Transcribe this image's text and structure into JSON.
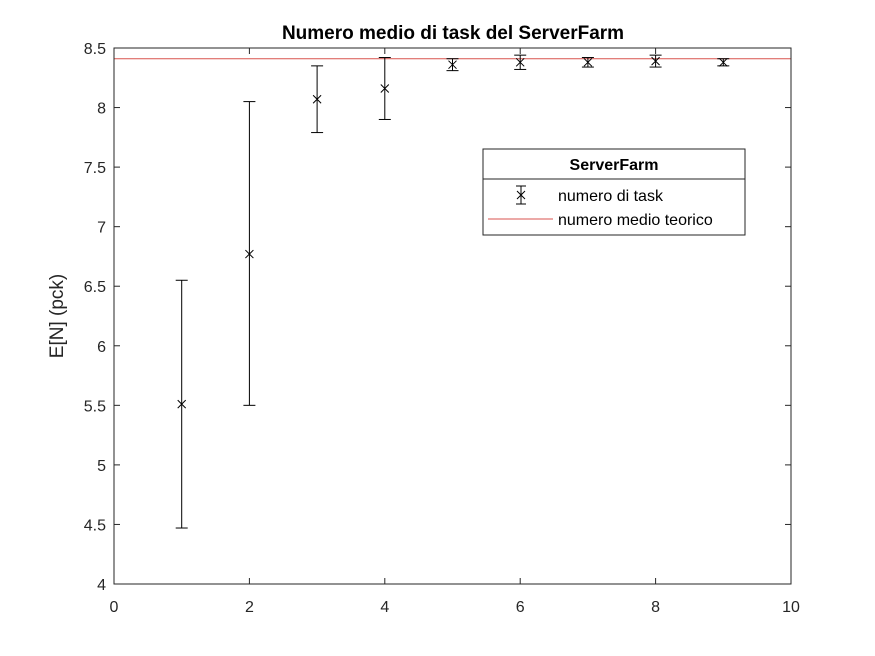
{
  "chart_data": {
    "type": "scatter",
    "title": "Numero medio di task del ServerFarm",
    "xlabel": "",
    "ylabel": "E[N] (pck)",
    "xlim": [
      0,
      10
    ],
    "ylim": [
      4,
      8.5
    ],
    "xticks": [
      "0",
      "2",
      "4",
      "6",
      "8",
      "10"
    ],
    "yticks": [
      "4",
      "4.5",
      "5",
      "5.5",
      "6",
      "6.5",
      "7",
      "7.5",
      "8",
      "8.5"
    ],
    "grid": false,
    "legend": {
      "title": "ServerFarm",
      "placement": "upper-right-inside",
      "entries": [
        "numero di task",
        "numero medio teorico"
      ]
    },
    "series": [
      {
        "name": "numero di task",
        "kind": "errorbar",
        "marker": "x",
        "color": "#000000",
        "x": [
          1,
          2,
          3,
          4,
          5,
          6,
          7,
          8,
          9
        ],
        "y": [
          5.51,
          6.77,
          8.07,
          8.16,
          8.36,
          8.38,
          8.38,
          8.39,
          8.38
        ],
        "lower": [
          4.47,
          5.5,
          7.79,
          7.9,
          8.31,
          8.32,
          8.34,
          8.34,
          8.35
        ],
        "upper": [
          6.55,
          8.05,
          8.35,
          8.42,
          8.41,
          8.44,
          8.42,
          8.44,
          8.41
        ]
      },
      {
        "name": "numero medio teorico",
        "kind": "hline",
        "color": "#d9534f",
        "y": 8.41
      }
    ]
  }
}
